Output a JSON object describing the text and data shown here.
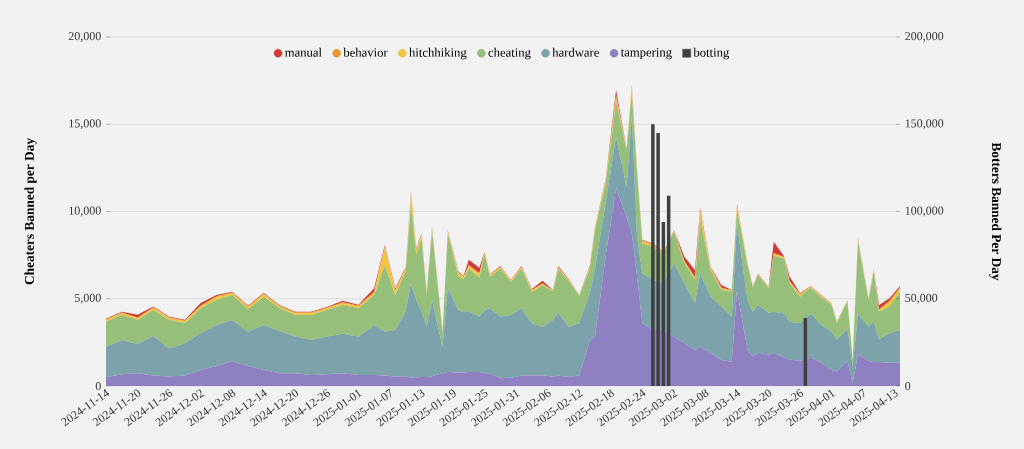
{
  "chart_data": {
    "type": "area",
    "stacked": true,
    "ylabel": "Cheaters Banned per Day",
    "y2label": "Botters Banned Per Day",
    "x": [
      "2024-11-14",
      "2024-11-17",
      "2024-11-20",
      "2024-11-23",
      "2024-11-26",
      "2024-11-29",
      "2024-12-02",
      "2024-12-05",
      "2024-12-08",
      "2024-12-11",
      "2024-12-14",
      "2024-12-17",
      "2024-12-20",
      "2024-12-23",
      "2024-12-26",
      "2024-12-29",
      "2025-01-01",
      "2025-01-04",
      "2025-01-06",
      "2025-01-08",
      "2025-01-10",
      "2025-01-11",
      "2025-01-12",
      "2025-01-13",
      "2025-01-14",
      "2025-01-15",
      "2025-01-17",
      "2025-01-18",
      "2025-01-20",
      "2025-01-21",
      "2025-01-22",
      "2025-01-24",
      "2025-01-25",
      "2025-01-26",
      "2025-01-28",
      "2025-01-30",
      "2025-02-01",
      "2025-02-03",
      "2025-02-05",
      "2025-02-07",
      "2025-02-08",
      "2025-02-10",
      "2025-02-12",
      "2025-02-14",
      "2025-02-15",
      "2025-02-17",
      "2025-02-19",
      "2025-02-21",
      "2025-02-22",
      "2025-02-23",
      "2025-02-24",
      "2025-02-26",
      "2025-02-28",
      "2025-03-02",
      "2025-03-04",
      "2025-03-06",
      "2025-03-07",
      "2025-03-09",
      "2025-03-11",
      "2025-03-13",
      "2025-03-14",
      "2025-03-16",
      "2025-03-17",
      "2025-03-18",
      "2025-03-20",
      "2025-03-21",
      "2025-03-23",
      "2025-03-24",
      "2025-03-26",
      "2025-03-28",
      "2025-03-30",
      "2025-04-01",
      "2025-04-02",
      "2025-04-04",
      "2025-04-05",
      "2025-04-06",
      "2025-04-08",
      "2025-04-09",
      "2025-04-10",
      "2025-04-12",
      "2025-04-14"
    ],
    "series": [
      {
        "name": "tampering",
        "color": "#8e80c1",
        "values": [
          500,
          670,
          730,
          600,
          540,
          600,
          920,
          1150,
          1400,
          1150,
          920,
          730,
          730,
          630,
          670,
          730,
          630,
          630,
          600,
          540,
          560,
          470,
          500,
          520,
          520,
          560,
          730,
          800,
          780,
          770,
          800,
          800,
          750,
          700,
          440,
          470,
          600,
          600,
          600,
          540,
          600,
          520,
          600,
          2640,
          2830,
          7410,
          11330,
          9700,
          8760,
          6270,
          3600,
          3210,
          3210,
          2820,
          2450,
          2060,
          2250,
          1870,
          1490,
          1390,
          5490,
          2060,
          1710,
          1900,
          1810,
          1900,
          1620,
          1520,
          1430,
          1620,
          1330,
          920,
          830,
          1430,
          150,
          1810,
          1430,
          1380,
          1380,
          1330,
          1330
        ]
      },
      {
        "name": "hardware",
        "color": "#7ca3ab",
        "values": [
          1750,
          1970,
          1670,
          2270,
          1610,
          1850,
          2100,
          2350,
          2380,
          1960,
          2580,
          2420,
          2100,
          2010,
          2160,
          2270,
          2200,
          2870,
          2510,
          2670,
          3720,
          5400,
          4430,
          3780,
          2880,
          4370,
          1520,
          4800,
          3580,
          3460,
          3500,
          3170,
          3610,
          3750,
          3530,
          3600,
          3850,
          2990,
          2800,
          3240,
          3600,
          2880,
          2990,
          2670,
          3910,
          3060,
          2960,
          1720,
          6680,
          2280,
          2860,
          2870,
          2680,
          4210,
          3440,
          2700,
          4210,
          3260,
          3070,
          2590,
          3830,
          2850,
          2550,
          2740,
          2390,
          2360,
          2540,
          2160,
          2160,
          2540,
          2160,
          2190,
          1810,
          1870,
          960,
          2350,
          1970,
          2300,
          1290,
          1690,
          1880
        ]
      },
      {
        "name": "cheating",
        "color": "#96bf7a",
        "values": [
          1430,
          1430,
          1380,
          1480,
          1630,
          1140,
          1430,
          1430,
          1430,
          1290,
          1620,
          1300,
          1240,
          1430,
          1520,
          1640,
          1620,
          1710,
          3790,
          2000,
          2300,
          4580,
          2580,
          4150,
          1810,
          3970,
          780,
          3140,
          1940,
          1880,
          2440,
          2230,
          3190,
          1800,
          2770,
          1880,
          2290,
          1780,
          2390,
          1620,
          2500,
          2590,
          1560,
          1390,
          2190,
          1090,
          2000,
          2110,
          1330,
          3650,
          1710,
          1900,
          1710,
          1810,
          1140,
          1320,
          3050,
          1520,
          950,
          1420,
          760,
          2020,
          1390,
          1710,
          1400,
          3190,
          3140,
          2190,
          1530,
          1490,
          1590,
          1530,
          960,
          1550,
          380,
          4110,
          1550,
          2870,
          1590,
          1530,
          2190
        ]
      },
      {
        "name": "hitchhiking",
        "color": "#f0c53c",
        "values": [
          90,
          100,
          100,
          110,
          100,
          120,
          100,
          150,
          110,
          110,
          130,
          90,
          100,
          100,
          90,
          110,
          110,
          130,
          1000,
          250,
          120,
          500,
          250,
          180,
          100,
          120,
          60,
          100,
          180,
          100,
          120,
          200,
          80,
          80,
          70,
          70,
          70,
          100,
          50,
          50,
          70,
          60,
          30,
          80,
          80,
          120,
          200,
          30,
          300,
          100,
          100,
          100,
          50,
          50,
          80,
          100,
          400,
          100,
          80,
          50,
          250,
          50,
          40,
          50,
          50,
          100,
          60,
          100,
          100,
          40,
          70,
          50,
          50,
          40,
          20,
          100,
          40,
          80,
          80,
          250,
          180
        ]
      },
      {
        "name": "behavior",
        "color": "#e8972f",
        "values": [
          40,
          40,
          50,
          50,
          50,
          40,
          50,
          60,
          40,
          50,
          50,
          40,
          40,
          40,
          40,
          50,
          50,
          60,
          100,
          60,
          50,
          100,
          70,
          60,
          50,
          50,
          30,
          50,
          50,
          50,
          70,
          80,
          40,
          40,
          30,
          30,
          30,
          50,
          40,
          30,
          30,
          30,
          20,
          40,
          40,
          60,
          170,
          20,
          100,
          40,
          50,
          50,
          20,
          30,
          50,
          70,
          150,
          50,
          50,
          30,
          80,
          30,
          20,
          20,
          20,
          70,
          30,
          50,
          50,
          20,
          30,
          20,
          30,
          20,
          20,
          50,
          20,
          30,
          50,
          80,
          70
        ]
      },
      {
        "name": "manual",
        "color": "#d13b35",
        "values": [
          40,
          40,
          150,
          40,
          40,
          40,
          150,
          70,
          40,
          40,
          50,
          40,
          40,
          40,
          40,
          90,
          40,
          200,
          80,
          80,
          50,
          80,
          60,
          50,
          40,
          50,
          30,
          40,
          50,
          40,
          300,
          300,
          30,
          30,
          30,
          30,
          30,
          40,
          150,
          20,
          70,
          30,
          10,
          50,
          40,
          60,
          300,
          20,
          80,
          40,
          40,
          40,
          20,
          20,
          250,
          400,
          120,
          40,
          150,
          20,
          50,
          20,
          20,
          20,
          20,
          650,
          20,
          250,
          40,
          20,
          30,
          20,
          20,
          20,
          10,
          40,
          20,
          30,
          250,
          150,
          80
        ]
      },
      {
        "name": "botting",
        "type": "bar",
        "axis": "y2",
        "color": "#404040",
        "x": [
          "2025-02-26",
          "2025-02-27",
          "2025-02-28",
          "2025-03-01",
          "2025-03-27"
        ],
        "values": [
          150000,
          145000,
          94000,
          109000,
          39000
        ]
      }
    ],
    "xlim": [
      "2024-11-14",
      "2025-04-14"
    ],
    "xticks": [
      "2024-11-14",
      "2024-11-20",
      "2024-11-26",
      "2024-12-02",
      "2024-12-08",
      "2024-12-14",
      "2024-12-20",
      "2024-12-26",
      "2025-01-01",
      "2025-01-07",
      "2025-01-13",
      "2025-01-19",
      "2025-01-25",
      "2025-01-31",
      "2025-02-06",
      "2025-02-12",
      "2025-02-18",
      "2025-02-24",
      "2025-03-02",
      "2025-03-08",
      "2025-03-14",
      "2025-03-20",
      "2025-03-26",
      "2025-04-01",
      "2025-04-07",
      "2025-04-13"
    ],
    "ylim": [
      0,
      20000
    ],
    "yticks": [
      0,
      {
        "value": 5000,
        "label": "5,000"
      },
      {
        "value": 10000,
        "label": "10,000"
      },
      {
        "value": 15000,
        "label": "15,000"
      },
      {
        "value": 20000,
        "label": "20,000"
      }
    ],
    "y2lim": [
      0,
      200000
    ],
    "y2ticks": [
      0,
      {
        "value": 50000,
        "label": "50,000"
      },
      {
        "value": 100000,
        "label": "100,000"
      },
      {
        "value": 150000,
        "label": "150,000"
      },
      {
        "value": 200000,
        "label": "200,000"
      }
    ],
    "grid": "y",
    "legend": "top"
  }
}
